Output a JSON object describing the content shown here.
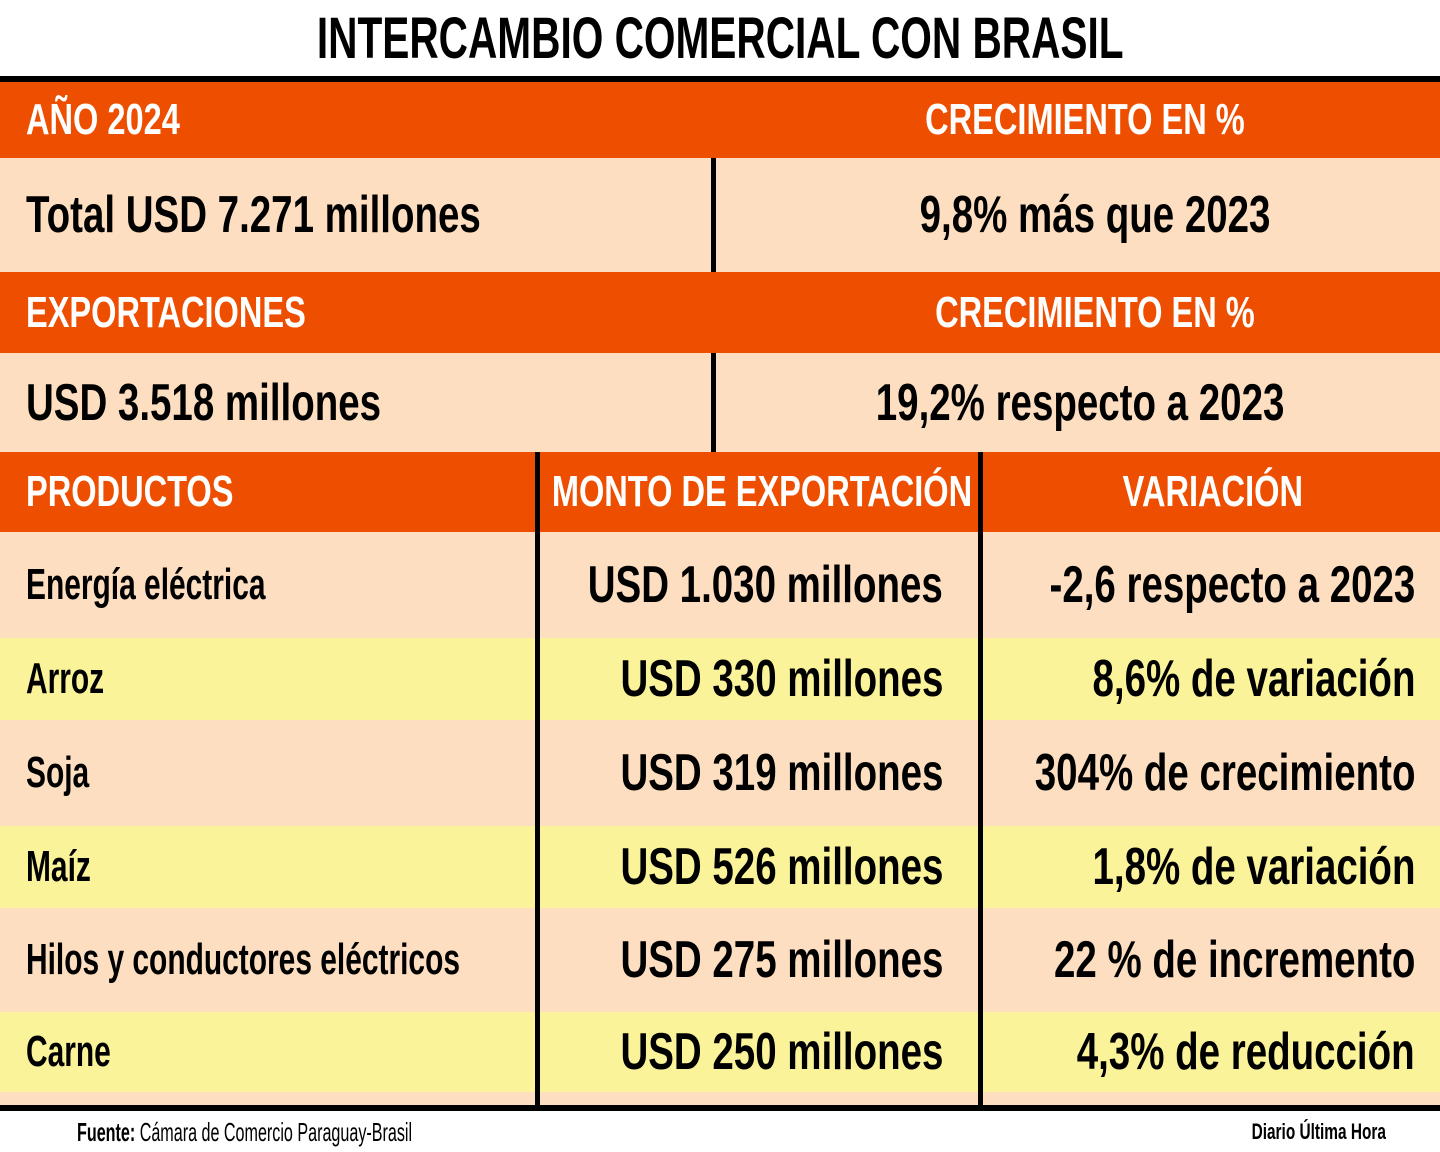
{
  "title": "INTERCAMBIO COMERCIAL CON BRASIL",
  "colors": {
    "header": "#EE4E00",
    "peach": "#FDDEC0",
    "yellow": "#FBF39A",
    "text": "#000000"
  },
  "summary": {
    "year_label": "AÑO 2024",
    "growth_label_1": "CRECIMIENTO EN %",
    "total": "Total USD 7.271 millones",
    "total_growth": "9,8% más que 2023",
    "exports_label": "EXPORTACIONES",
    "growth_label_2": "CRECIMIENTO EN %",
    "exports": "USD 3.518 millones",
    "exports_growth": "19,2% respecto a 2023"
  },
  "chart_data": {
    "type": "table",
    "title": "INTERCAMBIO COMERCIAL CON BRASIL",
    "columns": [
      "PRODUCTOS",
      "MONTO DE EXPORTACIÓN",
      "VARIACIÓN"
    ],
    "rows": [
      {
        "product": "Energía eléctrica",
        "amount": "USD 1.030 millones",
        "variation": "-2,6 respecto a 2023",
        "bg": "peach"
      },
      {
        "product": "Arroz",
        "amount": "USD 330 millones",
        "variation": "8,6% de variación",
        "bg": "yellow"
      },
      {
        "product": "Soja",
        "amount": "USD 319 millones",
        "variation": "304% de crecimiento",
        "bg": "peach"
      },
      {
        "product": "Maíz",
        "amount": "USD 526 millones",
        "variation": "1,8% de variación",
        "bg": "yellow"
      },
      {
        "product": "Hilos y conductores eléctricos",
        "amount": "USD 275 millones",
        "variation": "22 % de incremento",
        "bg": "peach"
      },
      {
        "product": "Carne",
        "amount": "USD 250 millones",
        "variation": "4,3% de reducción",
        "bg": "yellow"
      }
    ]
  },
  "footer": {
    "source_label": "Fuente:",
    "source": "Cámara de Comercio Paraguay-Brasil",
    "credit": "Diario Última Hora"
  }
}
